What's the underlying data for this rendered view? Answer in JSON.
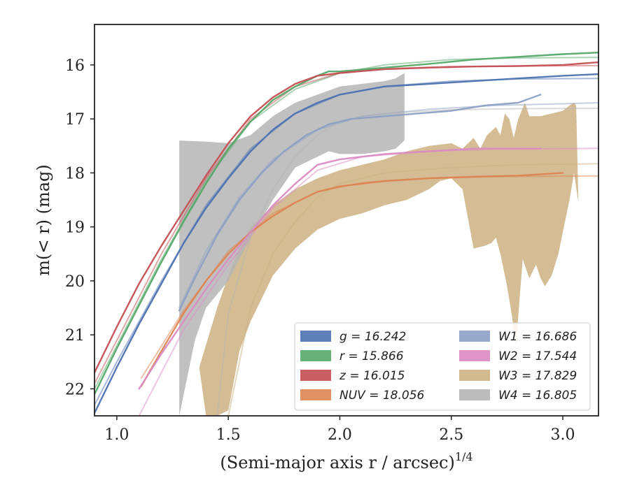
{
  "chart_data": {
    "type": "line",
    "title": "",
    "xlabel": "(Semi-major axis r / arcsec)",
    "xlabel_superscript": "1/4",
    "ylabel": "m(< r) (mag)",
    "xlim": [
      0.9,
      3.16
    ],
    "ylim": [
      22.5,
      15.25
    ],
    "y_inverted": true,
    "grid": false,
    "legend_position": "lower-right",
    "legend_columns": 2,
    "x_ticks": [
      "1.0",
      "1.5",
      "2.0",
      "2.5",
      "3.0"
    ],
    "y_ticks": [
      "16",
      "17",
      "18",
      "19",
      "20",
      "21",
      "22"
    ],
    "series": [
      {
        "name": "g",
        "label_text": "g = 16.242",
        "color": "#4c72b0",
        "kind": "line",
        "x": [
          0.9,
          1.0,
          1.1,
          1.2,
          1.3,
          1.4,
          1.5,
          1.6,
          1.7,
          1.8,
          1.9,
          2.0,
          2.2,
          2.4,
          2.6,
          2.8,
          3.0,
          3.16
        ],
        "y": [
          22.45,
          21.6,
          20.8,
          20.05,
          19.3,
          18.65,
          18.1,
          17.6,
          17.2,
          16.9,
          16.7,
          16.55,
          16.4,
          16.35,
          16.3,
          16.25,
          16.2,
          16.17
        ]
      },
      {
        "name": "g-model",
        "color": "#4c72b0",
        "kind": "line",
        "faint": true,
        "x": [
          0.9,
          1.0,
          1.2,
          1.4,
          1.6,
          1.8,
          2.0,
          2.2,
          2.5,
          2.8,
          3.16
        ],
        "y": [
          22.3,
          21.5,
          20.0,
          18.6,
          17.55,
          16.9,
          16.55,
          16.4,
          16.3,
          16.26,
          16.25
        ]
      },
      {
        "name": "r",
        "label_text": "r = 15.866",
        "color": "#55a868",
        "kind": "line",
        "x": [
          0.9,
          1.0,
          1.1,
          1.2,
          1.3,
          1.4,
          1.5,
          1.6,
          1.7,
          1.8,
          1.9,
          1.95,
          2.0,
          2.2,
          2.4,
          2.6,
          2.8,
          3.0,
          3.16
        ],
        "y": [
          22.1,
          21.25,
          20.45,
          19.65,
          18.9,
          18.2,
          17.55,
          17.05,
          16.65,
          16.4,
          16.2,
          16.12,
          16.12,
          16.05,
          15.98,
          15.9,
          15.85,
          15.8,
          15.77
        ]
      },
      {
        "name": "r-model",
        "color": "#55a868",
        "kind": "line",
        "faint": true,
        "x": [
          0.9,
          1.0,
          1.2,
          1.4,
          1.6,
          1.8,
          2.0,
          2.2,
          2.5,
          2.8,
          3.16
        ],
        "y": [
          22.0,
          21.2,
          19.6,
          18.15,
          17.05,
          16.45,
          16.15,
          16.0,
          15.9,
          15.87,
          15.86
        ]
      },
      {
        "name": "z",
        "label_text": "z = 16.015",
        "color": "#c44e52",
        "kind": "line",
        "x": [
          0.9,
          1.0,
          1.1,
          1.2,
          1.3,
          1.4,
          1.5,
          1.6,
          1.7,
          1.8,
          1.9,
          2.0,
          2.2,
          2.4,
          2.6,
          2.8,
          3.0,
          3.16
        ],
        "y": [
          21.7,
          20.85,
          20.05,
          19.35,
          18.7,
          18.05,
          17.45,
          16.95,
          16.6,
          16.35,
          16.2,
          16.15,
          16.08,
          16.05,
          16.03,
          16.02,
          16.0,
          15.95
        ]
      },
      {
        "name": "z-model",
        "color": "#c44e52",
        "kind": "line",
        "faint": true,
        "x": [
          0.9,
          1.0,
          1.2,
          1.4,
          1.6,
          1.8,
          2.0,
          2.2,
          2.5,
          2.8,
          3.16
        ],
        "y": [
          21.9,
          21.1,
          19.5,
          18.1,
          17.0,
          16.4,
          16.15,
          16.07,
          16.03,
          16.02,
          16.01
        ]
      },
      {
        "name": "NUV",
        "label_text": "NUV = 18.056",
        "color": "#dd8452",
        "kind": "line",
        "x": [
          1.11,
          1.2,
          1.3,
          1.4,
          1.5,
          1.6,
          1.7,
          1.8,
          1.9,
          2.0,
          2.2,
          2.4,
          2.6,
          2.8,
          3.0
        ],
        "y": [
          21.95,
          21.3,
          20.6,
          20.0,
          19.5,
          19.1,
          18.8,
          18.55,
          18.35,
          18.25,
          18.15,
          18.1,
          18.07,
          18.05,
          18.0
        ]
      },
      {
        "name": "NUV-model",
        "color": "#dd8452",
        "kind": "line",
        "faint": true,
        "x": [
          1.11,
          1.3,
          1.5,
          1.7,
          1.9,
          2.1,
          2.4,
          2.7,
          3.0,
          3.16
        ],
        "y": [
          21.8,
          20.55,
          19.45,
          18.75,
          18.35,
          18.18,
          18.1,
          18.07,
          18.06,
          18.056
        ]
      },
      {
        "name": "W1",
        "label_text": "W1 = 16.686",
        "color": "#8c9fc4",
        "kind": "line",
        "x": [
          1.28,
          1.35,
          1.45,
          1.55,
          1.65,
          1.75,
          1.85,
          1.95,
          2.05,
          2.2,
          2.35,
          2.5,
          2.65,
          2.8,
          2.9
        ],
        "y": [
          20.55,
          19.95,
          19.15,
          18.5,
          18.0,
          17.6,
          17.3,
          17.1,
          17.0,
          16.95,
          16.9,
          16.85,
          16.75,
          16.7,
          16.55
        ]
      },
      {
        "name": "W1-model",
        "color": "#8c9fc4",
        "kind": "line",
        "faint": true,
        "x": [
          1.28,
          1.4,
          1.55,
          1.7,
          1.9,
          2.1,
          2.4,
          2.7,
          3.0,
          3.16
        ],
        "y": [
          20.5,
          19.45,
          18.45,
          17.75,
          17.2,
          16.95,
          16.82,
          16.75,
          16.72,
          16.7
        ]
      },
      {
        "name": "W2",
        "label_text": "W2 = 17.544",
        "color": "#da8bc3",
        "kind": "line",
        "x": [
          1.1,
          1.2,
          1.3,
          1.4,
          1.5,
          1.6,
          1.7,
          1.8,
          1.9,
          2.0,
          2.2,
          2.4,
          2.6,
          2.8,
          2.9
        ],
        "y": [
          22.0,
          21.35,
          20.75,
          20.15,
          19.6,
          19.1,
          18.6,
          18.2,
          17.85,
          17.75,
          17.65,
          17.6,
          17.55,
          17.55,
          17.55
        ]
      },
      {
        "name": "W2-model",
        "color": "#da8bc3",
        "kind": "line",
        "faint": true,
        "x": [
          1.1,
          1.3,
          1.5,
          1.7,
          1.9,
          2.1,
          2.4,
          2.7,
          3.0,
          3.16
        ],
        "y": [
          22.5,
          20.9,
          19.7,
          18.65,
          17.95,
          17.7,
          17.6,
          17.56,
          17.55,
          17.544
        ]
      },
      {
        "name": "W3",
        "label_text": "W3 = 17.829",
        "color": "#ccb282",
        "kind": "band",
        "upper_x": [
          1.37,
          1.45,
          1.5,
          1.55,
          1.6,
          1.7,
          1.8,
          1.9,
          2.0,
          2.1,
          2.2,
          2.3,
          2.4,
          2.5,
          2.55,
          2.6,
          2.63,
          2.66,
          2.7,
          2.72,
          2.74,
          2.76,
          2.78,
          2.8,
          2.83,
          2.85,
          2.9,
          2.95,
          3.0,
          3.03,
          3.05,
          3.06
        ],
        "upper_y": [
          21.6,
          20.5,
          19.9,
          19.4,
          19.0,
          18.6,
          18.3,
          18.1,
          17.95,
          17.85,
          17.75,
          17.6,
          17.5,
          17.45,
          17.55,
          17.35,
          17.55,
          17.3,
          17.15,
          17.3,
          16.9,
          17.0,
          17.35,
          17.0,
          16.7,
          16.95,
          16.95,
          16.9,
          16.85,
          16.75,
          16.7,
          16.75
        ],
        "lower_x": [
          3.07,
          3.05,
          3.03,
          3.0,
          2.98,
          2.95,
          2.92,
          2.9,
          2.88,
          2.85,
          2.82,
          2.79,
          2.77,
          2.75,
          2.72,
          2.7,
          2.68,
          2.65,
          2.6,
          2.55,
          2.5,
          2.45,
          2.4,
          2.3,
          2.2,
          2.1,
          2.0,
          1.9,
          1.8,
          1.7,
          1.6,
          1.55,
          1.5,
          1.45,
          1.4
        ],
        "lower_y": [
          18.55,
          18.0,
          18.5,
          19.1,
          19.5,
          19.9,
          20.1,
          19.95,
          19.7,
          19.95,
          19.6,
          21.2,
          20.6,
          20.1,
          19.5,
          19.2,
          19.3,
          19.35,
          19.4,
          18.3,
          18.1,
          18.15,
          18.3,
          18.5,
          18.6,
          18.75,
          18.85,
          19.05,
          19.4,
          19.9,
          20.75,
          21.3,
          22.4,
          22.5,
          22.5
        ]
      },
      {
        "name": "W3-model",
        "color": "#ccb282",
        "kind": "line",
        "faint": true,
        "x": [
          1.5,
          1.6,
          1.7,
          1.8,
          1.9,
          2.0,
          2.2,
          2.5,
          2.8,
          3.16
        ],
        "y": [
          22.5,
          20.5,
          19.5,
          18.9,
          18.45,
          18.2,
          18.0,
          17.9,
          17.85,
          17.83
        ]
      },
      {
        "name": "W4",
        "label_text": "W4 = 16.805",
        "color": "#b5b5b5",
        "kind": "band",
        "upper_x": [
          1.28,
          1.4,
          1.5,
          1.6,
          1.7,
          1.8,
          1.9,
          2.0,
          2.1,
          2.2,
          2.25,
          2.29
        ],
        "upper_y": [
          17.4,
          17.42,
          17.45,
          17.3,
          16.95,
          16.7,
          16.55,
          16.4,
          16.35,
          16.3,
          16.25,
          16.15
        ],
        "lower_x": [
          2.29,
          2.25,
          2.2,
          2.1,
          2.0,
          1.95,
          1.9,
          1.85,
          1.8,
          1.7,
          1.6,
          1.55,
          1.5,
          1.4,
          1.35,
          1.28
        ],
        "lower_y": [
          17.4,
          17.55,
          17.6,
          17.65,
          17.65,
          17.6,
          17.7,
          17.8,
          17.9,
          18.5,
          19.2,
          19.6,
          20.0,
          20.5,
          21.1,
          22.5
        ]
      },
      {
        "name": "W4-model",
        "color": "#b5b5b5",
        "kind": "line",
        "faint": true,
        "x": [
          1.45,
          1.5,
          1.6,
          1.7,
          1.8,
          1.9,
          2.0,
          2.2,
          2.5,
          2.8,
          3.16
        ],
        "y": [
          22.5,
          20.6,
          19.2,
          18.3,
          17.7,
          17.3,
          17.05,
          16.9,
          16.83,
          16.81,
          16.805
        ]
      }
    ],
    "legend": [
      {
        "text": "g = 16.242",
        "color": "#4c72b0"
      },
      {
        "text": "r = 15.866",
        "color": "#55a868"
      },
      {
        "text": "z = 16.015",
        "color": "#c44e52"
      },
      {
        "text": "NUV = 18.056",
        "color": "#dd8452"
      },
      {
        "text": "W1 = 16.686",
        "color": "#8c9fc4"
      },
      {
        "text": "W2 = 17.544",
        "color": "#da8bc3"
      },
      {
        "text": "W3 = 17.829",
        "color": "#ccb282"
      },
      {
        "text": "W4 = 16.805",
        "color": "#b5b5b5"
      }
    ]
  }
}
